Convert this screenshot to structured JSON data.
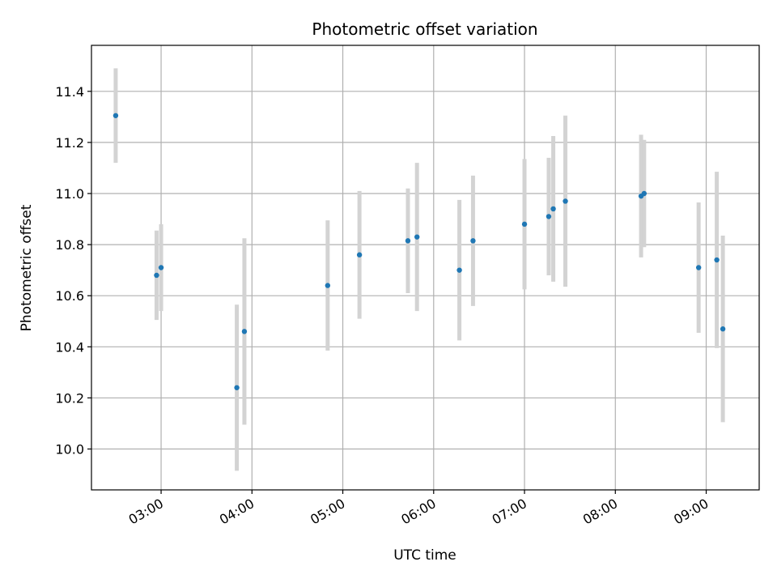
{
  "chart_data": {
    "type": "scatter",
    "title": "Photometric offset variation",
    "xlabel": "UTC time",
    "ylabel": "Photometric offset",
    "x_tick_labels": [
      "03:00",
      "04:00",
      "05:00",
      "06:00",
      "07:00",
      "08:00",
      "09:00"
    ],
    "y_tick_labels": [
      "10.0",
      "10.2",
      "10.4",
      "10.6",
      "10.8",
      "11.0",
      "11.2",
      "11.4"
    ],
    "x_ticks_utc": [
      "03:00",
      "04:00",
      "05:00",
      "06:00",
      "07:00",
      "08:00",
      "09:00"
    ],
    "y_ticks": [
      10.0,
      10.2,
      10.4,
      10.6,
      10.8,
      11.0,
      11.2,
      11.4
    ],
    "xlim": [
      "02:14",
      "09:35"
    ],
    "ylim": [
      9.84,
      11.58
    ],
    "grid": true,
    "marker_color": "#1f77b4",
    "errorbar_color": "#d3d3d3",
    "points": [
      {
        "x": "02:30",
        "y": 11.305,
        "err": 0.185
      },
      {
        "x": "02:57",
        "y": 10.68,
        "err": 0.175
      },
      {
        "x": "03:00",
        "y": 10.71,
        "err": 0.17
      },
      {
        "x": "03:50",
        "y": 10.24,
        "err": 0.325
      },
      {
        "x": "03:55",
        "y": 10.46,
        "err": 0.365
      },
      {
        "x": "04:50",
        "y": 10.64,
        "err": 0.255
      },
      {
        "x": "05:11",
        "y": 10.76,
        "err": 0.25
      },
      {
        "x": "05:43",
        "y": 10.815,
        "err": 0.205
      },
      {
        "x": "05:49",
        "y": 10.83,
        "err": 0.29
      },
      {
        "x": "06:17",
        "y": 10.7,
        "err": 0.275
      },
      {
        "x": "06:26",
        "y": 10.815,
        "err": 0.255
      },
      {
        "x": "07:00",
        "y": 10.88,
        "err": 0.255
      },
      {
        "x": "07:16",
        "y": 10.91,
        "err": 0.23
      },
      {
        "x": "07:19",
        "y": 10.94,
        "err": 0.285
      },
      {
        "x": "07:27",
        "y": 10.97,
        "err": 0.335
      },
      {
        "x": "08:17",
        "y": 10.99,
        "err": 0.24
      },
      {
        "x": "08:19",
        "y": 11.0,
        "err": 0.21
      },
      {
        "x": "08:55",
        "y": 10.71,
        "err": 0.255
      },
      {
        "x": "09:07",
        "y": 10.74,
        "err": 0.345
      },
      {
        "x": "09:11",
        "y": 10.47,
        "err": 0.365
      }
    ]
  }
}
